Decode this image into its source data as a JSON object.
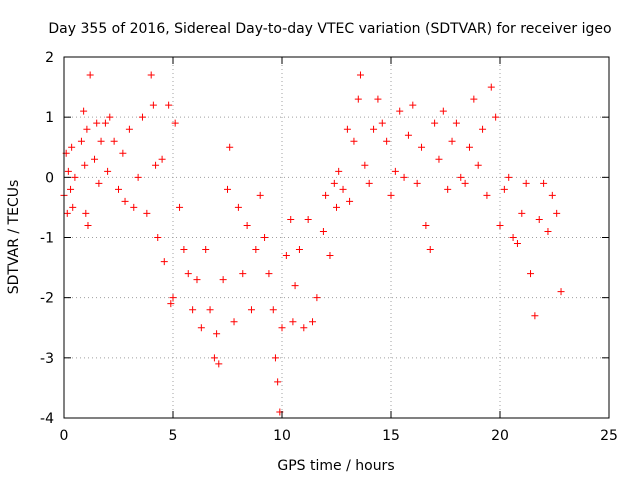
{
  "chart_data": {
    "type": "scatter",
    "title": "Day 355 of 2016, Sidereal Day-to-day VTEC variation (SDTVAR) for receiver igeo",
    "xlabel": "GPS time / hours",
    "ylabel": "SDTVAR / TECUs",
    "xlim": [
      0,
      25
    ],
    "ylim": [
      -4,
      2
    ],
    "x_ticks": [
      0,
      5,
      10,
      15,
      20,
      25
    ],
    "y_ticks": [
      -4,
      -3,
      -2,
      -1,
      0,
      1,
      2
    ],
    "x_tick_labels": [
      "0",
      "5",
      "10",
      "15",
      "20",
      "25"
    ],
    "y_tick_labels": [
      "-4",
      "-3",
      "-2",
      "-1",
      "0",
      "1",
      "2"
    ],
    "grid": true,
    "marker": "plus",
    "series": [
      {
        "name": "SDTVAR",
        "color": "#ff0000",
        "points": [
          [
            0.0,
            -0.3
          ],
          [
            0.1,
            0.4
          ],
          [
            0.15,
            -0.6
          ],
          [
            0.2,
            0.1
          ],
          [
            0.3,
            -0.2
          ],
          [
            0.35,
            0.5
          ],
          [
            0.4,
            -0.5
          ],
          [
            0.5,
            0.0
          ],
          [
            0.8,
            0.6
          ],
          [
            0.9,
            1.1
          ],
          [
            0.95,
            0.2
          ],
          [
            1.0,
            -0.6
          ],
          [
            1.05,
            0.8
          ],
          [
            1.1,
            -0.8
          ],
          [
            1.2,
            1.7
          ],
          [
            1.4,
            0.3
          ],
          [
            1.5,
            0.9
          ],
          [
            1.6,
            -0.1
          ],
          [
            1.7,
            0.6
          ],
          [
            1.9,
            0.9
          ],
          [
            2.0,
            0.1
          ],
          [
            2.1,
            1.0
          ],
          [
            2.3,
            0.6
          ],
          [
            2.5,
            -0.2
          ],
          [
            2.7,
            0.4
          ],
          [
            2.8,
            -0.4
          ],
          [
            3.0,
            0.8
          ],
          [
            3.2,
            -0.5
          ],
          [
            3.4,
            0.0
          ],
          [
            3.6,
            1.0
          ],
          [
            3.8,
            -0.6
          ],
          [
            4.0,
            1.7
          ],
          [
            4.1,
            1.2
          ],
          [
            4.2,
            0.2
          ],
          [
            4.3,
            -1.0
          ],
          [
            4.5,
            0.3
          ],
          [
            4.6,
            -1.4
          ],
          [
            4.8,
            1.2
          ],
          [
            4.9,
            -2.1
          ],
          [
            5.0,
            -2.0
          ],
          [
            5.1,
            0.9
          ],
          [
            5.3,
            -0.5
          ],
          [
            5.5,
            -1.2
          ],
          [
            5.7,
            -1.6
          ],
          [
            5.9,
            -2.2
          ],
          [
            6.1,
            -1.7
          ],
          [
            6.3,
            -2.5
          ],
          [
            6.5,
            -1.2
          ],
          [
            6.7,
            -2.2
          ],
          [
            6.9,
            -3.0
          ],
          [
            7.0,
            -2.6
          ],
          [
            7.1,
            -3.1
          ],
          [
            7.3,
            -1.7
          ],
          [
            7.5,
            -0.2
          ],
          [
            7.6,
            0.5
          ],
          [
            7.8,
            -2.4
          ],
          [
            8.0,
            -0.5
          ],
          [
            8.2,
            -1.6
          ],
          [
            8.4,
            -0.8
          ],
          [
            8.6,
            -2.2
          ],
          [
            8.8,
            -1.2
          ],
          [
            9.0,
            -0.3
          ],
          [
            9.2,
            -1.0
          ],
          [
            9.4,
            -1.6
          ],
          [
            9.6,
            -2.2
          ],
          [
            9.7,
            -3.0
          ],
          [
            9.8,
            -3.4
          ],
          [
            9.9,
            -3.9
          ],
          [
            10.0,
            -2.5
          ],
          [
            10.2,
            -1.3
          ],
          [
            10.4,
            -0.7
          ],
          [
            10.5,
            -2.4
          ],
          [
            10.6,
            -1.8
          ],
          [
            10.8,
            -1.2
          ],
          [
            11.0,
            -2.5
          ],
          [
            11.2,
            -0.7
          ],
          [
            11.4,
            -2.4
          ],
          [
            11.6,
            -2.0
          ],
          [
            11.9,
            -0.9
          ],
          [
            12.0,
            -0.3
          ],
          [
            12.2,
            -1.3
          ],
          [
            12.4,
            -0.1
          ],
          [
            12.5,
            -0.5
          ],
          [
            12.6,
            0.1
          ],
          [
            12.8,
            -0.2
          ],
          [
            13.0,
            0.8
          ],
          [
            13.1,
            -0.4
          ],
          [
            13.3,
            0.6
          ],
          [
            13.5,
            1.3
          ],
          [
            13.6,
            1.7
          ],
          [
            13.8,
            0.2
          ],
          [
            14.0,
            -0.1
          ],
          [
            14.2,
            0.8
          ],
          [
            14.4,
            1.3
          ],
          [
            14.6,
            0.9
          ],
          [
            14.8,
            0.6
          ],
          [
            15.0,
            -0.3
          ],
          [
            15.2,
            0.1
          ],
          [
            15.4,
            1.1
          ],
          [
            15.6,
            0.0
          ],
          [
            15.8,
            0.7
          ],
          [
            16.0,
            1.2
          ],
          [
            16.2,
            -0.1
          ],
          [
            16.4,
            0.5
          ],
          [
            16.6,
            -0.8
          ],
          [
            16.8,
            -1.2
          ],
          [
            17.0,
            0.9
          ],
          [
            17.2,
            0.3
          ],
          [
            17.4,
            1.1
          ],
          [
            17.6,
            -0.2
          ],
          [
            17.8,
            0.6
          ],
          [
            18.0,
            0.9
          ],
          [
            18.2,
            0.0
          ],
          [
            18.4,
            -0.1
          ],
          [
            18.6,
            0.5
          ],
          [
            18.8,
            1.3
          ],
          [
            19.0,
            0.2
          ],
          [
            19.2,
            0.8
          ],
          [
            19.4,
            -0.3
          ],
          [
            19.6,
            1.5
          ],
          [
            19.8,
            1.0
          ],
          [
            20.0,
            -0.8
          ],
          [
            20.2,
            -0.2
          ],
          [
            20.4,
            0.0
          ],
          [
            20.6,
            -1.0
          ],
          [
            20.8,
            -1.1
          ],
          [
            21.0,
            -0.6
          ],
          [
            21.2,
            -0.1
          ],
          [
            21.4,
            -1.6
          ],
          [
            21.6,
            -2.3
          ],
          [
            21.8,
            -0.7
          ],
          [
            22.0,
            -0.1
          ],
          [
            22.2,
            -0.9
          ],
          [
            22.4,
            -0.3
          ],
          [
            22.6,
            -0.6
          ],
          [
            22.8,
            -1.9
          ]
        ]
      }
    ]
  }
}
